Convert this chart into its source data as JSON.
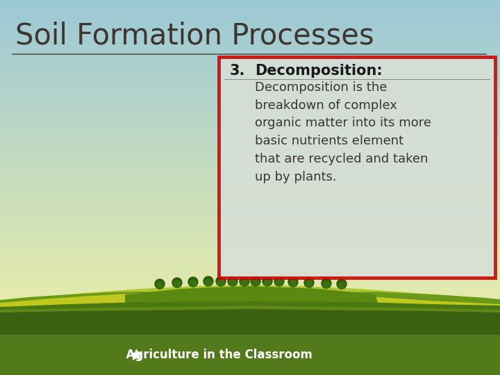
{
  "title": "Soil Formation Processes",
  "title_color": "#3d3530",
  "title_fontsize": 30,
  "underline_color": "#555555",
  "box_number": "3.",
  "box_heading": "Decomposition:",
  "box_text": "Decomposition is the\nbreakdown of complex\norganic matter into its more\nbasic nutrients element\nthat are recycled and taken\nup by plants.",
  "box_border_color": "#cc0000",
  "box_fill_color": "#d8dfd8",
  "box_text_color": "#3a3530",
  "box_heading_color": "#1a1a1a",
  "text_fontsize": 13,
  "heading_fontsize": 14,
  "footer_bg_color": "#527a1a",
  "footer_text": "  Agriculture in the Classroom",
  "footer_text_color": "#ffffff",
  "footer_fontsize": 12
}
